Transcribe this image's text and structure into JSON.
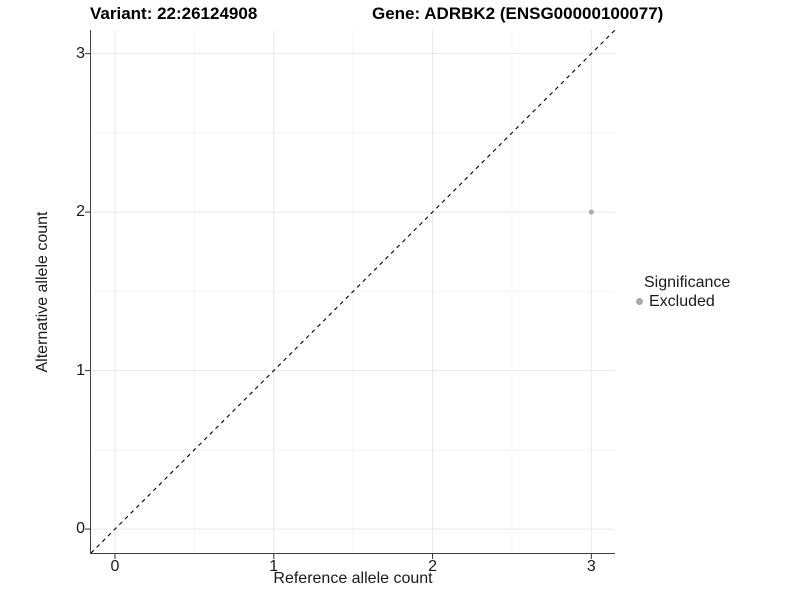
{
  "chart_data": {
    "type": "scatter",
    "title_left": "Variant: 22:26124908",
    "title_right": "Gene: ADRBK2 (ENSG00000100077)",
    "xlabel": "Reference allele count",
    "ylabel": "Alternative allele count",
    "xlim": [
      -0.151,
      3.149
    ],
    "ylim": [
      -0.151,
      3.149
    ],
    "x_ticks": [
      0,
      1,
      2,
      3
    ],
    "y_ticks": [
      0,
      1,
      2,
      3
    ],
    "minor_ticks_x": [
      0.5,
      1.5,
      2.5
    ],
    "minor_ticks_y": [
      0.5,
      1.5,
      2.5
    ],
    "grid": "major-and-minor",
    "series": [
      {
        "name": "Excluded",
        "color": "#aaaaaa",
        "point_radius": 2.5,
        "points": [
          {
            "x": 3,
            "y": 2
          }
        ]
      }
    ],
    "identity_line": {
      "slope": 1,
      "intercept": 0,
      "style": "dashed",
      "color": "#000000"
    },
    "legend": {
      "title": "Significance",
      "position": "right",
      "items": [
        {
          "label": "Excluded",
          "color": "#aaaaaa"
        }
      ]
    },
    "colors": {
      "grid_major": "#e8e8e8",
      "grid_minor": "#f4f4f4",
      "axis_line": "#404040",
      "tick_mark": "#333333",
      "tick_label": "#1a1a1a",
      "title": "#000000",
      "background": "#ffffff"
    }
  }
}
